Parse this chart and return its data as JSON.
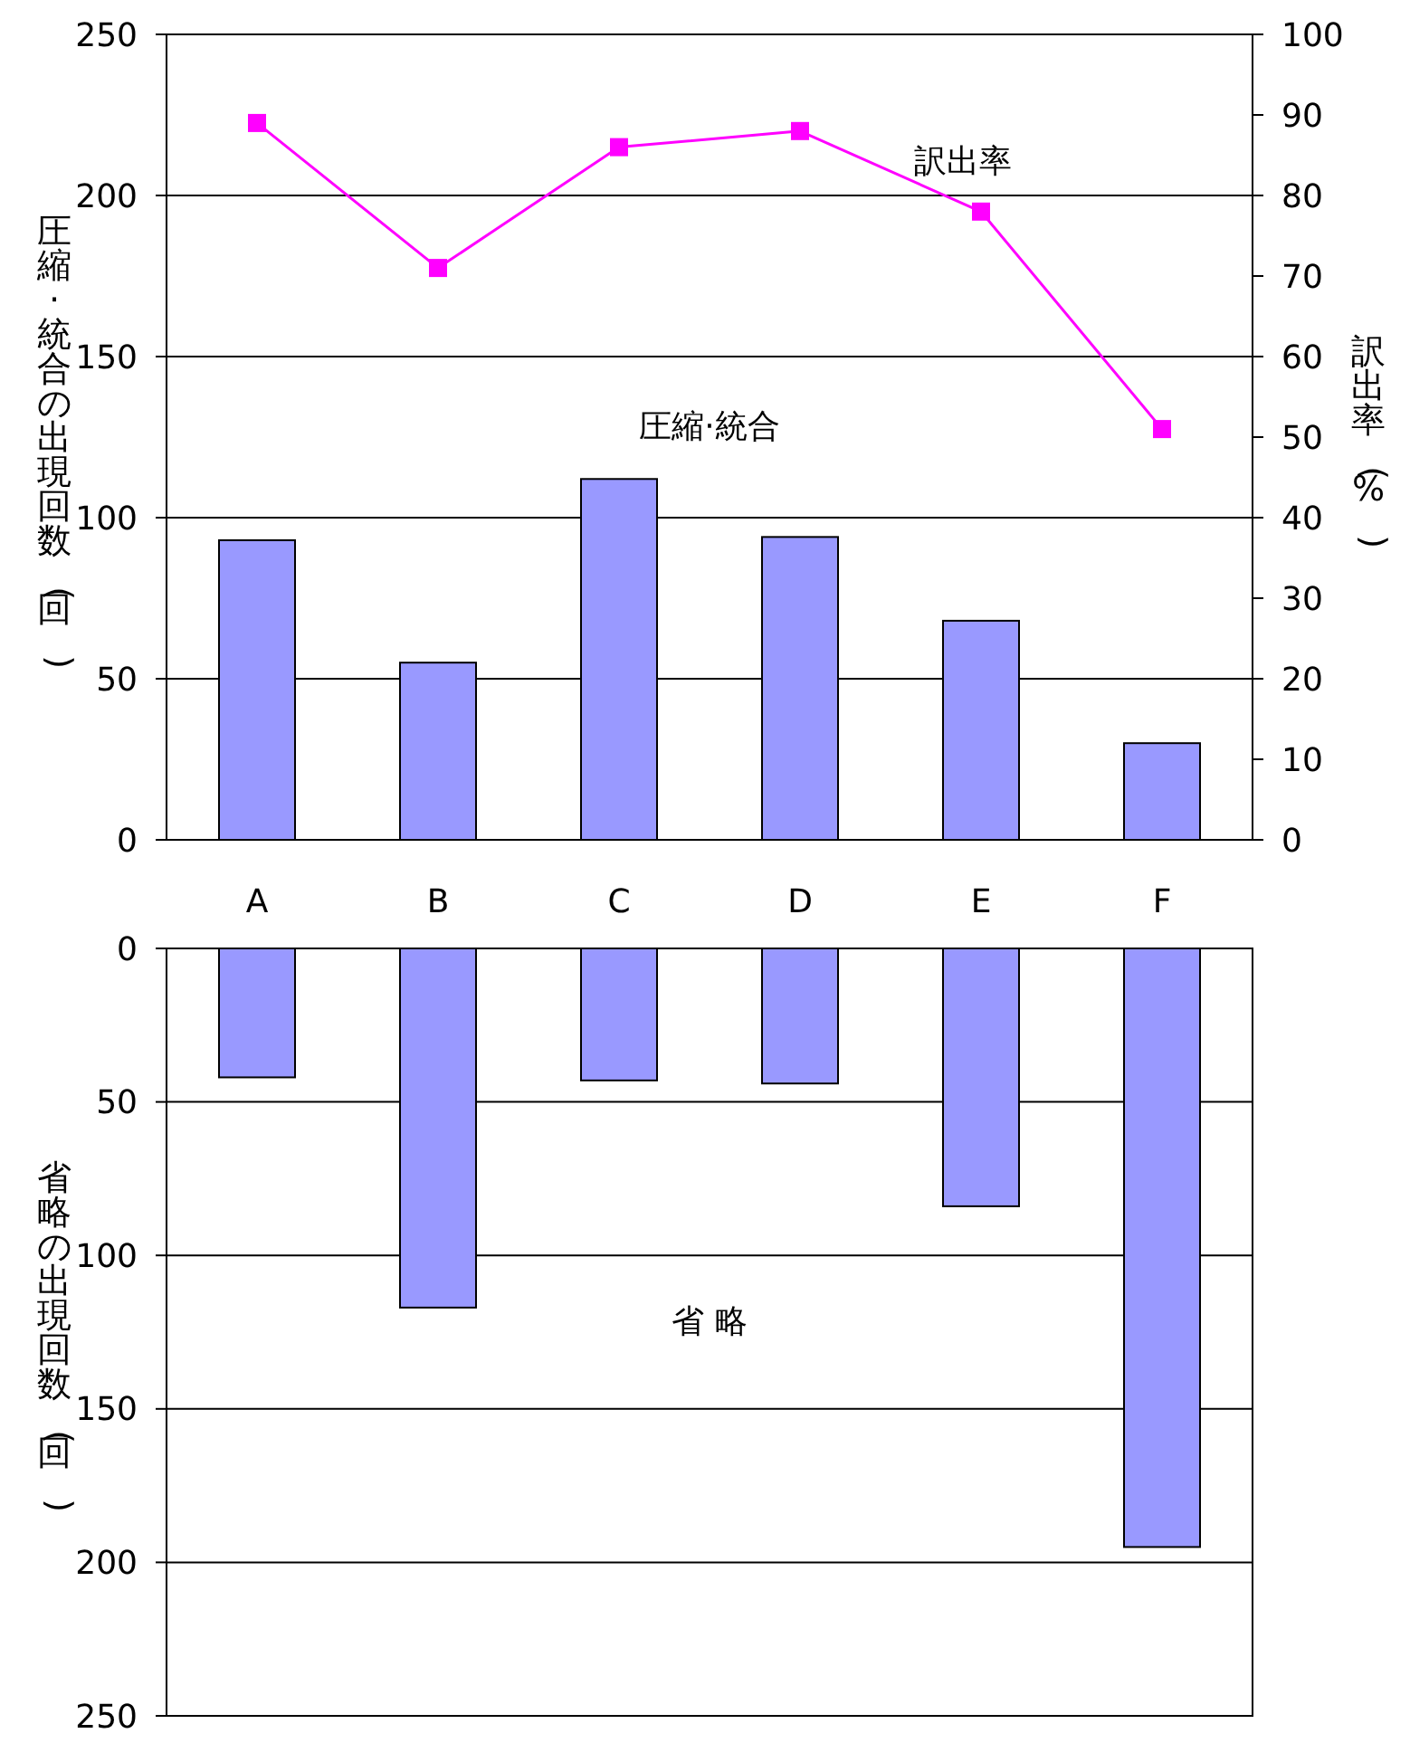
{
  "chart_data": [
    {
      "type": "bar",
      "categories": [
        "A",
        "B",
        "C",
        "D",
        "E",
        "F"
      ],
      "ylabel": "圧縮·統合の出現回数(回)",
      "y2label": "訳出率(%)",
      "ylim": [
        0,
        250
      ],
      "yticks": [
        0,
        50,
        100,
        150,
        200,
        250
      ],
      "y2lim": [
        0,
        100
      ],
      "y2ticks": [
        0,
        10,
        20,
        30,
        40,
        50,
        60,
        70,
        80,
        90,
        100
      ],
      "grid": "y",
      "marker": "square",
      "series": [
        {
          "name": "圧縮·統合",
          "color": "#9999ff",
          "values": [
            93,
            55,
            112,
            94,
            68,
            30
          ]
        },
        {
          "name": "訳出率",
          "type": "line",
          "axis": "y2",
          "color": "#ff00ff",
          "values": [
            89,
            71,
            86,
            88,
            78,
            51
          ]
        }
      ]
    },
    {
      "type": "bar",
      "categories": [
        null,
        null,
        null,
        null,
        null,
        null
      ],
      "tick_labels": "y",
      "ylabel": "省略の出現回数(回)",
      "ylim": [
        250,
        0
      ],
      "yticks": [
        0,
        50,
        100,
        150,
        200,
        250
      ],
      "grid": "y",
      "series": [
        {
          "name": "省 略",
          "color": "#9999ff",
          "values": [
            42,
            117,
            43,
            44,
            84,
            195
          ]
        }
      ]
    }
  ]
}
